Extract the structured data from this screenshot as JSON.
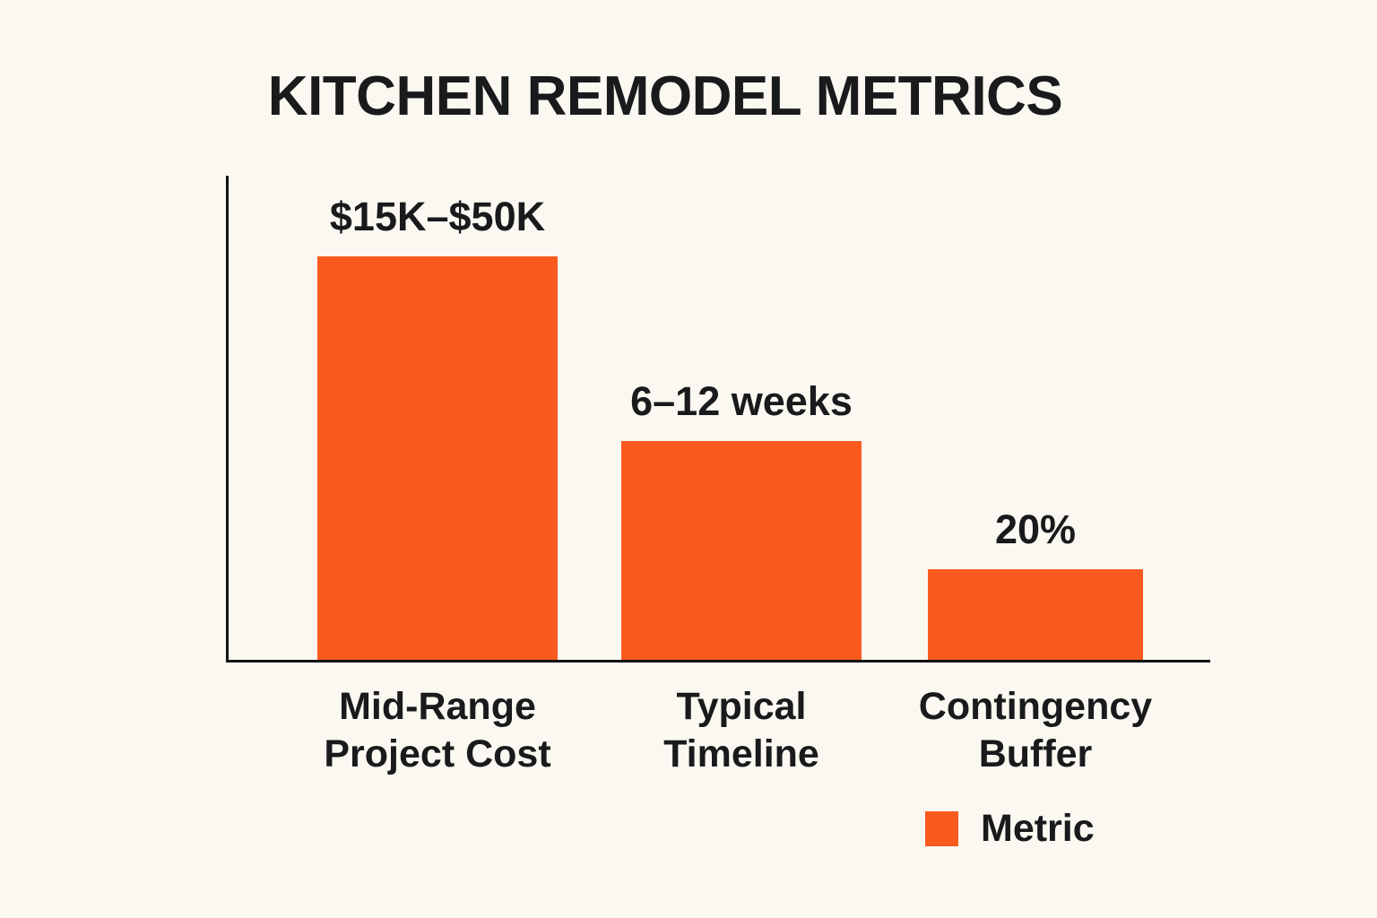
{
  "title": "KITCHEN REMODEL METRICS",
  "colors": {
    "background": "#FBF8F1",
    "bar": "#FB5A1E",
    "axis": "#121212",
    "text": "#191A1C"
  },
  "legend": {
    "label": "Metric",
    "swatch_color": "#FB5A1E",
    "position": "bottom-right"
  },
  "chart_data": {
    "type": "bar",
    "title": "KITCHEN REMODEL METRICS",
    "categories": [
      "Mid-Range Project Cost",
      "Typical Timeline",
      "Contingency Buffer"
    ],
    "values": [
      "$15K–$50K",
      "6–12 weeks",
      "20%"
    ],
    "series": [
      {
        "name": "Metric",
        "values": [
          "$15K–$50K",
          "6–12 weeks",
          "20%"
        ]
      }
    ],
    "bars": [
      {
        "category_line1": "Mid-Range",
        "category_line2": "Project Cost",
        "value_label": "$15K–$50K",
        "height_pct": 83.3
      },
      {
        "category_line1": "Typical",
        "category_line2": "Timeline",
        "value_label": "6–12 weeks",
        "height_pct": 45.2
      },
      {
        "category_line1": "Contingency",
        "category_line2": "Buffer",
        "value_label": "20%",
        "height_pct": 18.7
      }
    ],
    "xlabel": "",
    "ylabel": "",
    "grid": false,
    "legend_position": "bottom-right"
  }
}
